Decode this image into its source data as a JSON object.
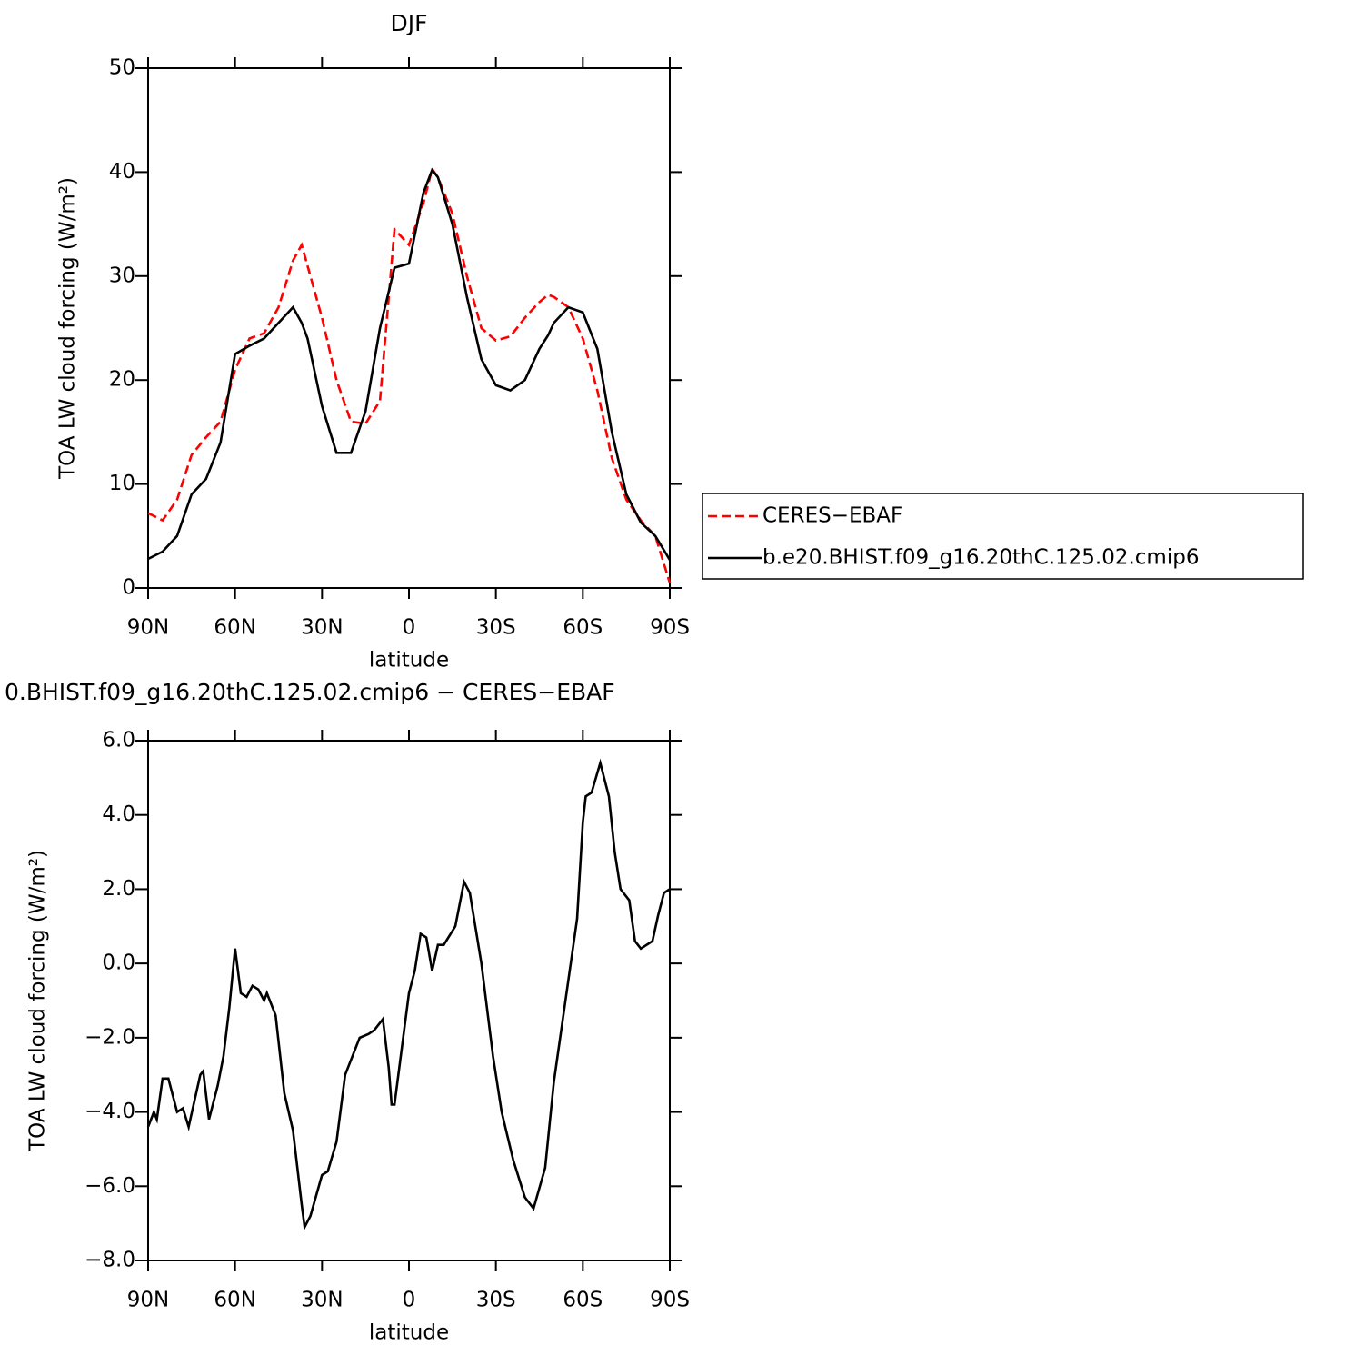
{
  "chart_data": [
    {
      "type": "line",
      "title": "DJF",
      "xlabel": "latitude",
      "ylabel": "TOA LW cloud forcing (W/m²)",
      "x": [
        90,
        85,
        80,
        75,
        70,
        65,
        60,
        55,
        50,
        45,
        40,
        37,
        35,
        30,
        25,
        20,
        15,
        10,
        5,
        0,
        -5,
        -8,
        -10,
        -15,
        -20,
        -25,
        -30,
        -35,
        -40,
        -45,
        -48,
        -50,
        -55,
        -60,
        -65,
        -70,
        -75,
        -80,
        -85,
        -90
      ],
      "series": [
        {
          "name": "CERES−EBAF",
          "color": "#ff0000",
          "style": "dashed",
          "values": [
            7.2,
            6.5,
            8.5,
            12.8,
            14.5,
            16,
            21,
            24,
            24.5,
            27,
            31.5,
            33,
            31,
            26,
            20,
            16,
            15.8,
            18,
            34.5,
            33,
            37,
            40.3,
            39.5,
            36,
            30,
            25,
            23.8,
            24.2,
            26,
            27.5,
            28.2,
            28,
            27,
            24,
            19,
            12.5,
            8.5,
            6.5,
            5,
            0.5
          ]
        },
        {
          "name": "b.e20.BHIST.f09_g16.20thC.125.02.cmip6",
          "color": "#000000",
          "style": "solid",
          "values": [
            2.8,
            3.5,
            5,
            9,
            10.5,
            14,
            22.5,
            23.3,
            24,
            25.5,
            27,
            25.5,
            24,
            17.5,
            13,
            13,
            17,
            25,
            30.8,
            31.2,
            38,
            40.2,
            39.5,
            35,
            28,
            22,
            19.5,
            19,
            20,
            23,
            24.3,
            25.5,
            27,
            26.5,
            23,
            15,
            9,
            6.3,
            5,
            2.7
          ]
        }
      ],
      "xlim": [
        90,
        -90
      ],
      "xticks": [
        {
          "value": 90,
          "label": "90N"
        },
        {
          "value": 60,
          "label": "60N"
        },
        {
          "value": 30,
          "label": "30N"
        },
        0,
        {
          "value": -30,
          "label": "30S"
        },
        {
          "value": -60,
          "label": "60S"
        },
        {
          "value": -90,
          "label": "90S"
        }
      ],
      "ylim": [
        0,
        50
      ],
      "yticks": [
        0,
        10,
        20,
        30,
        40,
        50
      ],
      "legend": "right"
    },
    {
      "type": "line",
      "title": "0.BHIST.f09_g16.20thC.125.02.cmip6 − CERES−EBAF",
      "xlabel": "latitude",
      "ylabel": "TOA LW cloud forcing (W/m²)",
      "x": [
        90,
        88,
        87,
        85,
        83,
        80,
        78,
        76,
        72,
        71,
        69,
        66,
        64,
        62,
        60,
        58,
        56,
        54,
        52,
        50,
        49,
        46,
        43,
        40,
        37,
        36,
        34,
        30,
        28,
        25,
        22,
        18,
        17,
        14,
        12,
        9,
        7,
        6,
        5,
        2,
        0,
        -2,
        -4,
        -6,
        -8,
        -10,
        -12,
        -16,
        -19,
        -21,
        -25,
        -29,
        -32,
        -36,
        -40,
        -43,
        -47,
        -50,
        -54,
        -58,
        -60,
        -61,
        -63,
        -66,
        -69,
        -71,
        -73,
        -76,
        -78,
        -80,
        -84,
        -86,
        -88,
        -90
      ],
      "values": [
        -4.4,
        -4.0,
        -4.2,
        -3.1,
        -3.1,
        -4.0,
        -3.9,
        -4.4,
        -3.0,
        -2.9,
        -4.2,
        -3.3,
        -2.5,
        -1.2,
        0.4,
        -0.8,
        -0.9,
        -0.6,
        -0.7,
        -1.0,
        -0.8,
        -1.4,
        -3.5,
        -4.5,
        -6.5,
        -7.1,
        -6.8,
        -5.7,
        -5.6,
        -4.8,
        -3.0,
        -2.2,
        -2.0,
        -1.9,
        -1.8,
        -1.5,
        -2.8,
        -3.8,
        -3.8,
        -2.0,
        -0.8,
        -0.2,
        0.8,
        0.7,
        -0.2,
        0.5,
        0.5,
        1.0,
        2.2,
        1.9,
        0.0,
        -2.5,
        -4.0,
        -5.3,
        -6.3,
        -6.6,
        -5.5,
        -3.2,
        -1.0,
        1.2,
        3.8,
        4.5,
        4.6,
        5.4,
        4.5,
        3.0,
        2.0,
        1.7,
        0.6,
        0.4,
        0.6,
        1.3,
        1.9,
        2.0
      ],
      "color": "#000000",
      "xlim": [
        90,
        -90
      ],
      "xticks": [
        {
          "value": 90,
          "label": "90N"
        },
        {
          "value": 60,
          "label": "60N"
        },
        {
          "value": 30,
          "label": "30N"
        },
        0,
        {
          "value": -30,
          "label": "30S"
        },
        {
          "value": -60,
          "label": "60S"
        },
        {
          "value": -90,
          "label": "90S"
        }
      ],
      "ylim": [
        -8,
        6
      ],
      "yticks": [
        {
          "value": -8,
          "label": "−8.0"
        },
        {
          "value": -6,
          "label": "−6.0"
        },
        {
          "value": -4,
          "label": "−4.0"
        },
        {
          "value": -2,
          "label": "−2.0"
        },
        {
          "value": 0,
          "label": "0.0"
        },
        {
          "value": 2,
          "label": "2.0"
        },
        {
          "value": 4,
          "label": "4.0"
        },
        {
          "value": 6,
          "label": "6.0"
        }
      ]
    }
  ]
}
